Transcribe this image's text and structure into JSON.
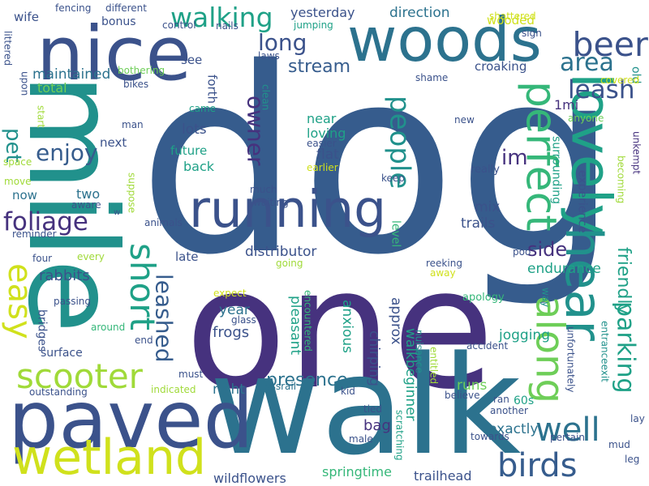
{
  "palette": {
    "background": "#ffffff",
    "purple": "#46327e",
    "indigo": "#3b528b",
    "blue": "#365c8d",
    "steel": "#2c728e",
    "teal": "#21918c",
    "sea": "#1fa187",
    "green": "#35b779",
    "lime": "#6ece58",
    "yellowgreen": "#a0da39",
    "yellow": "#d0e11c",
    "darkpurple": "#440154"
  },
  "words": [
    {
      "key": "dog",
      "text": "dog"
    },
    {
      "key": "one",
      "text": "one"
    },
    {
      "key": "walk",
      "text": "walk"
    },
    {
      "key": "mile",
      "text": "mile"
    },
    {
      "key": "nice",
      "text": "nice"
    },
    {
      "key": "woods",
      "text": "woods"
    },
    {
      "key": "paved",
      "text": "paved"
    },
    {
      "key": "lovely",
      "text": "lovely"
    },
    {
      "key": "running",
      "text": "running"
    },
    {
      "key": "wetland",
      "text": "wetland"
    },
    {
      "key": "scooter",
      "text": "scooter"
    },
    {
      "key": "hear",
      "text": "hear"
    },
    {
      "key": "perfect",
      "text": "perfect"
    },
    {
      "key": "along",
      "text": "along"
    },
    {
      "key": "beer",
      "text": "beer"
    },
    {
      "key": "birds",
      "text": "birds"
    },
    {
      "key": "well",
      "text": "well"
    },
    {
      "key": "easy",
      "text": "easy"
    },
    {
      "key": "short",
      "text": "short"
    },
    {
      "key": "walking",
      "text": "walking"
    },
    {
      "key": "leash",
      "text": "leash"
    },
    {
      "key": "foliage",
      "text": "foliage"
    },
    {
      "key": "people",
      "text": "people"
    },
    {
      "key": "parking",
      "text": "parking"
    },
    {
      "key": "area",
      "text": "area"
    },
    {
      "key": "enjoy",
      "text": "enjoy"
    },
    {
      "key": "long",
      "text": "long"
    },
    {
      "key": "owner",
      "text": "owner"
    },
    {
      "key": "stream",
      "text": "stream"
    },
    {
      "key": "leashed",
      "text": "leashed"
    },
    {
      "key": "presence",
      "text": "presence"
    },
    {
      "key": "friendly",
      "text": "friendly"
    },
    {
      "key": "pet",
      "text": "pet"
    },
    {
      "key": "im",
      "text": "im"
    },
    {
      "key": "side",
      "text": "side"
    },
    {
      "key": "yesterday",
      "text": "yesterday"
    },
    {
      "key": "direction",
      "text": "direction"
    },
    {
      "key": "maintained",
      "text": "maintained"
    },
    {
      "key": "rabbits",
      "text": "rabbits"
    },
    {
      "key": "distributor",
      "text": "distributor"
    },
    {
      "key": "endurance",
      "text": "endurance"
    },
    {
      "key": "frogs",
      "text": "frogs"
    },
    {
      "key": "year",
      "text": "year"
    },
    {
      "key": "pleasant",
      "text": "pleasant"
    },
    {
      "key": "anxious",
      "text": "anxious"
    },
    {
      "key": "chirping",
      "text": "chirping"
    },
    {
      "key": "approx",
      "text": "approx"
    },
    {
      "key": "walkbeginner",
      "text": "walkbeginner"
    },
    {
      "key": "jogging",
      "text": "jogging"
    },
    {
      "key": "bag",
      "text": "bag"
    },
    {
      "key": "runs",
      "text": "runs"
    },
    {
      "key": "trails",
      "text": "trails"
    },
    {
      "key": "mix",
      "text": "mix"
    },
    {
      "key": "exactly",
      "text": "exactly"
    },
    {
      "key": "right",
      "text": "right"
    },
    {
      "key": "wildflowers",
      "text": "wildflowers"
    },
    {
      "key": "springtime",
      "text": "springtime"
    },
    {
      "key": "trailhead",
      "text": "trailhead"
    },
    {
      "key": "croaking",
      "text": "croaking"
    },
    {
      "key": "total",
      "text": "total"
    },
    {
      "key": "wife",
      "text": "wife"
    },
    {
      "key": "bonus",
      "text": "bonus"
    },
    {
      "key": "fencing",
      "text": "fencing"
    },
    {
      "key": "different",
      "text": "different"
    },
    {
      "key": "control",
      "text": "control"
    },
    {
      "key": "nails",
      "text": "nails"
    },
    {
      "key": "jumping",
      "text": "jumping"
    },
    {
      "key": "wooded",
      "text": "wooded"
    },
    {
      "key": "shattered",
      "text": "shattered"
    },
    {
      "key": "sign",
      "text": "sign"
    },
    {
      "key": "littered",
      "text": "littered"
    },
    {
      "key": "upon",
      "text": "upon"
    },
    {
      "key": "see",
      "text": "see"
    },
    {
      "key": "forth",
      "text": "forth"
    },
    {
      "key": "laws",
      "text": "laws"
    },
    {
      "key": "clean",
      "text": "clean"
    },
    {
      "key": "shame",
      "text": "shame"
    },
    {
      "key": "old",
      "text": "old"
    },
    {
      "key": "bothering",
      "text": "bothering"
    },
    {
      "key": "bikes",
      "text": "bikes"
    },
    {
      "key": "covered",
      "text": "covered"
    },
    {
      "key": "start",
      "text": "start"
    },
    {
      "key": "came",
      "text": "came"
    },
    {
      "key": "lots",
      "text": "lots"
    },
    {
      "key": "near",
      "text": "near"
    },
    {
      "key": "loving",
      "text": "loving"
    },
    {
      "key": "1mi",
      "text": "1mi"
    },
    {
      "key": "anyone",
      "text": "anyone"
    },
    {
      "key": "man",
      "text": "man"
    },
    {
      "key": "next",
      "text": "next"
    },
    {
      "key": "future",
      "text": "future"
    },
    {
      "key": "easier",
      "text": "easier"
    },
    {
      "key": "flat",
      "text": "flat"
    },
    {
      "key": "surrounding",
      "text": "surrounding"
    },
    {
      "key": "experience",
      "text": "experience"
    },
    {
      "key": "new",
      "text": "new"
    },
    {
      "key": "unkempt",
      "text": "unkempt"
    },
    {
      "key": "becoming",
      "text": "becoming"
    },
    {
      "key": "space",
      "text": "space"
    },
    {
      "key": "back",
      "text": "back"
    },
    {
      "key": "earlier",
      "text": "earlier"
    },
    {
      "key": "really",
      "text": "really"
    },
    {
      "key": "suppose",
      "text": "suppose"
    },
    {
      "key": "keep",
      "text": "keep"
    },
    {
      "key": "move",
      "text": "move"
    },
    {
      "key": "now",
      "text": "now"
    },
    {
      "key": "two",
      "text": "two"
    },
    {
      "key": "much",
      "text": "much"
    },
    {
      "key": "aware",
      "text": "aware"
    },
    {
      "key": "waiting",
      "text": "waiting"
    },
    {
      "key": "level",
      "text": "level"
    },
    {
      "key": "w",
      "text": "w"
    },
    {
      "key": "reminder",
      "text": "reminder"
    },
    {
      "key": "animals",
      "text": "animals"
    },
    {
      "key": "late",
      "text": "late"
    },
    {
      "key": "four",
      "text": "four"
    },
    {
      "key": "every",
      "text": "every"
    },
    {
      "key": "poo",
      "text": "poo"
    },
    {
      "key": "going",
      "text": "going"
    },
    {
      "key": "reeking",
      "text": "reeking"
    },
    {
      "key": "away",
      "text": "away"
    },
    {
      "key": "bridges",
      "text": "bridges"
    },
    {
      "key": "passing",
      "text": "passing"
    },
    {
      "key": "expect",
      "text": "expect"
    },
    {
      "key": "glass",
      "text": "glass"
    },
    {
      "key": "apology",
      "text": "apology"
    },
    {
      "key": "way",
      "text": "way"
    },
    {
      "key": "around",
      "text": "around"
    },
    {
      "key": "end",
      "text": "end"
    },
    {
      "key": "encountered",
      "text": "encountered"
    },
    {
      "key": "nuisance",
      "text": "nuisance"
    },
    {
      "key": "entitled",
      "text": "entitled"
    },
    {
      "key": "accident",
      "text": "accident"
    },
    {
      "key": "entranceexit",
      "text": "entranceexit"
    },
    {
      "key": "unfortunately",
      "text": "unfortunately"
    },
    {
      "key": "surface",
      "text": "surface"
    },
    {
      "key": "must",
      "text": "must"
    },
    {
      "key": "crossrail",
      "text": "crossrail"
    },
    {
      "key": "kid",
      "text": "kid"
    },
    {
      "key": "indicated",
      "text": "indicated"
    },
    {
      "key": "believe",
      "text": "believe"
    },
    {
      "key": "outstanding",
      "text": "outstanding"
    },
    {
      "key": "ran",
      "text": "ran"
    },
    {
      "key": "60s",
      "text": "60s"
    },
    {
      "key": "another",
      "text": "another"
    },
    {
      "key": "lay",
      "text": "lay"
    },
    {
      "key": "tied",
      "text": "tied"
    },
    {
      "key": "scratching",
      "text": "scratching"
    },
    {
      "key": "towards",
      "text": "towards"
    },
    {
      "key": "pertain",
      "text": "pertain"
    },
    {
      "key": "mud",
      "text": "mud"
    },
    {
      "key": "male",
      "text": "male"
    },
    {
      "key": "leg",
      "text": "leg"
    }
  ]
}
